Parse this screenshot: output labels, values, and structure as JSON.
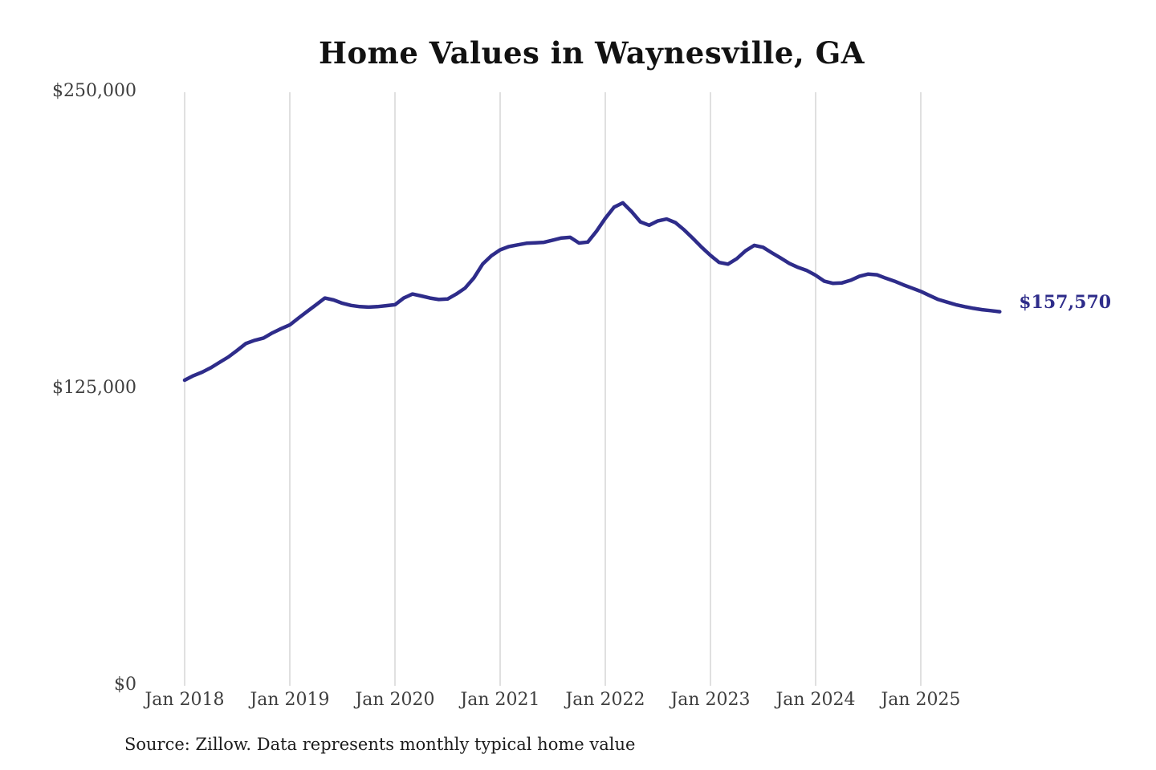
{
  "title": "Home Values in Waynesville, GA",
  "source_note": "Source: Zillow. Data represents monthly typical home value",
  "end_label": "$157,570",
  "colors": {
    "line": "#2e2c8a",
    "grid": "#c0c0c0",
    "axis_text": "#3f3f3f",
    "title_text": "#121212",
    "end_label_text": "#2e2c8a",
    "background": "#ffffff"
  },
  "chart_data": {
    "type": "line",
    "title": "Home Values in Waynesville, GA",
    "x_tick_labels": [
      "Jan 2018",
      "Jan 2019",
      "Jan 2020",
      "Jan 2021",
      "Jan 2022",
      "Jan 2023",
      "Jan 2024",
      "Jan 2025"
    ],
    "y_tick_labels": [
      "$0",
      "$125,000",
      "$250,000"
    ],
    "y_tick_values": [
      0,
      125000,
      250000
    ],
    "ylim": [
      0,
      250000
    ],
    "x_start": "2018-01",
    "x_end": "2025-10",
    "grid": "vertical-yearly",
    "legend": "none",
    "final_value": 157570,
    "final_value_label": "$157,570",
    "series": [
      {
        "name": "Monthly typical home value",
        "values": [
          128700,
          130600,
          132100,
          134000,
          136300,
          138500,
          141300,
          144200,
          145500,
          146500,
          148600,
          150400,
          152000,
          154900,
          157700,
          160500,
          163300,
          162500,
          161100,
          160200,
          159700,
          159500,
          159700,
          160100,
          160500,
          163300,
          165000,
          164200,
          163300,
          162700,
          162900,
          165000,
          167500,
          171800,
          177600,
          181100,
          183600,
          185000,
          185700,
          186400,
          186600,
          186800,
          187700,
          188600,
          188900,
          186500,
          186900,
          191500,
          196900,
          201600,
          203400,
          199700,
          195400,
          194000,
          195800,
          196600,
          195100,
          192000,
          188400,
          184700,
          181300,
          178300,
          177600,
          179900,
          183200,
          185500,
          184700,
          182400,
          180200,
          177900,
          176200,
          174900,
          172900,
          170400,
          169500,
          169700,
          170800,
          172500,
          173400,
          173100,
          171700,
          170400,
          168900,
          167500,
          166100,
          164400,
          162700,
          161600,
          160500,
          159700,
          159000,
          158400,
          158000,
          157570
        ]
      }
    ]
  }
}
